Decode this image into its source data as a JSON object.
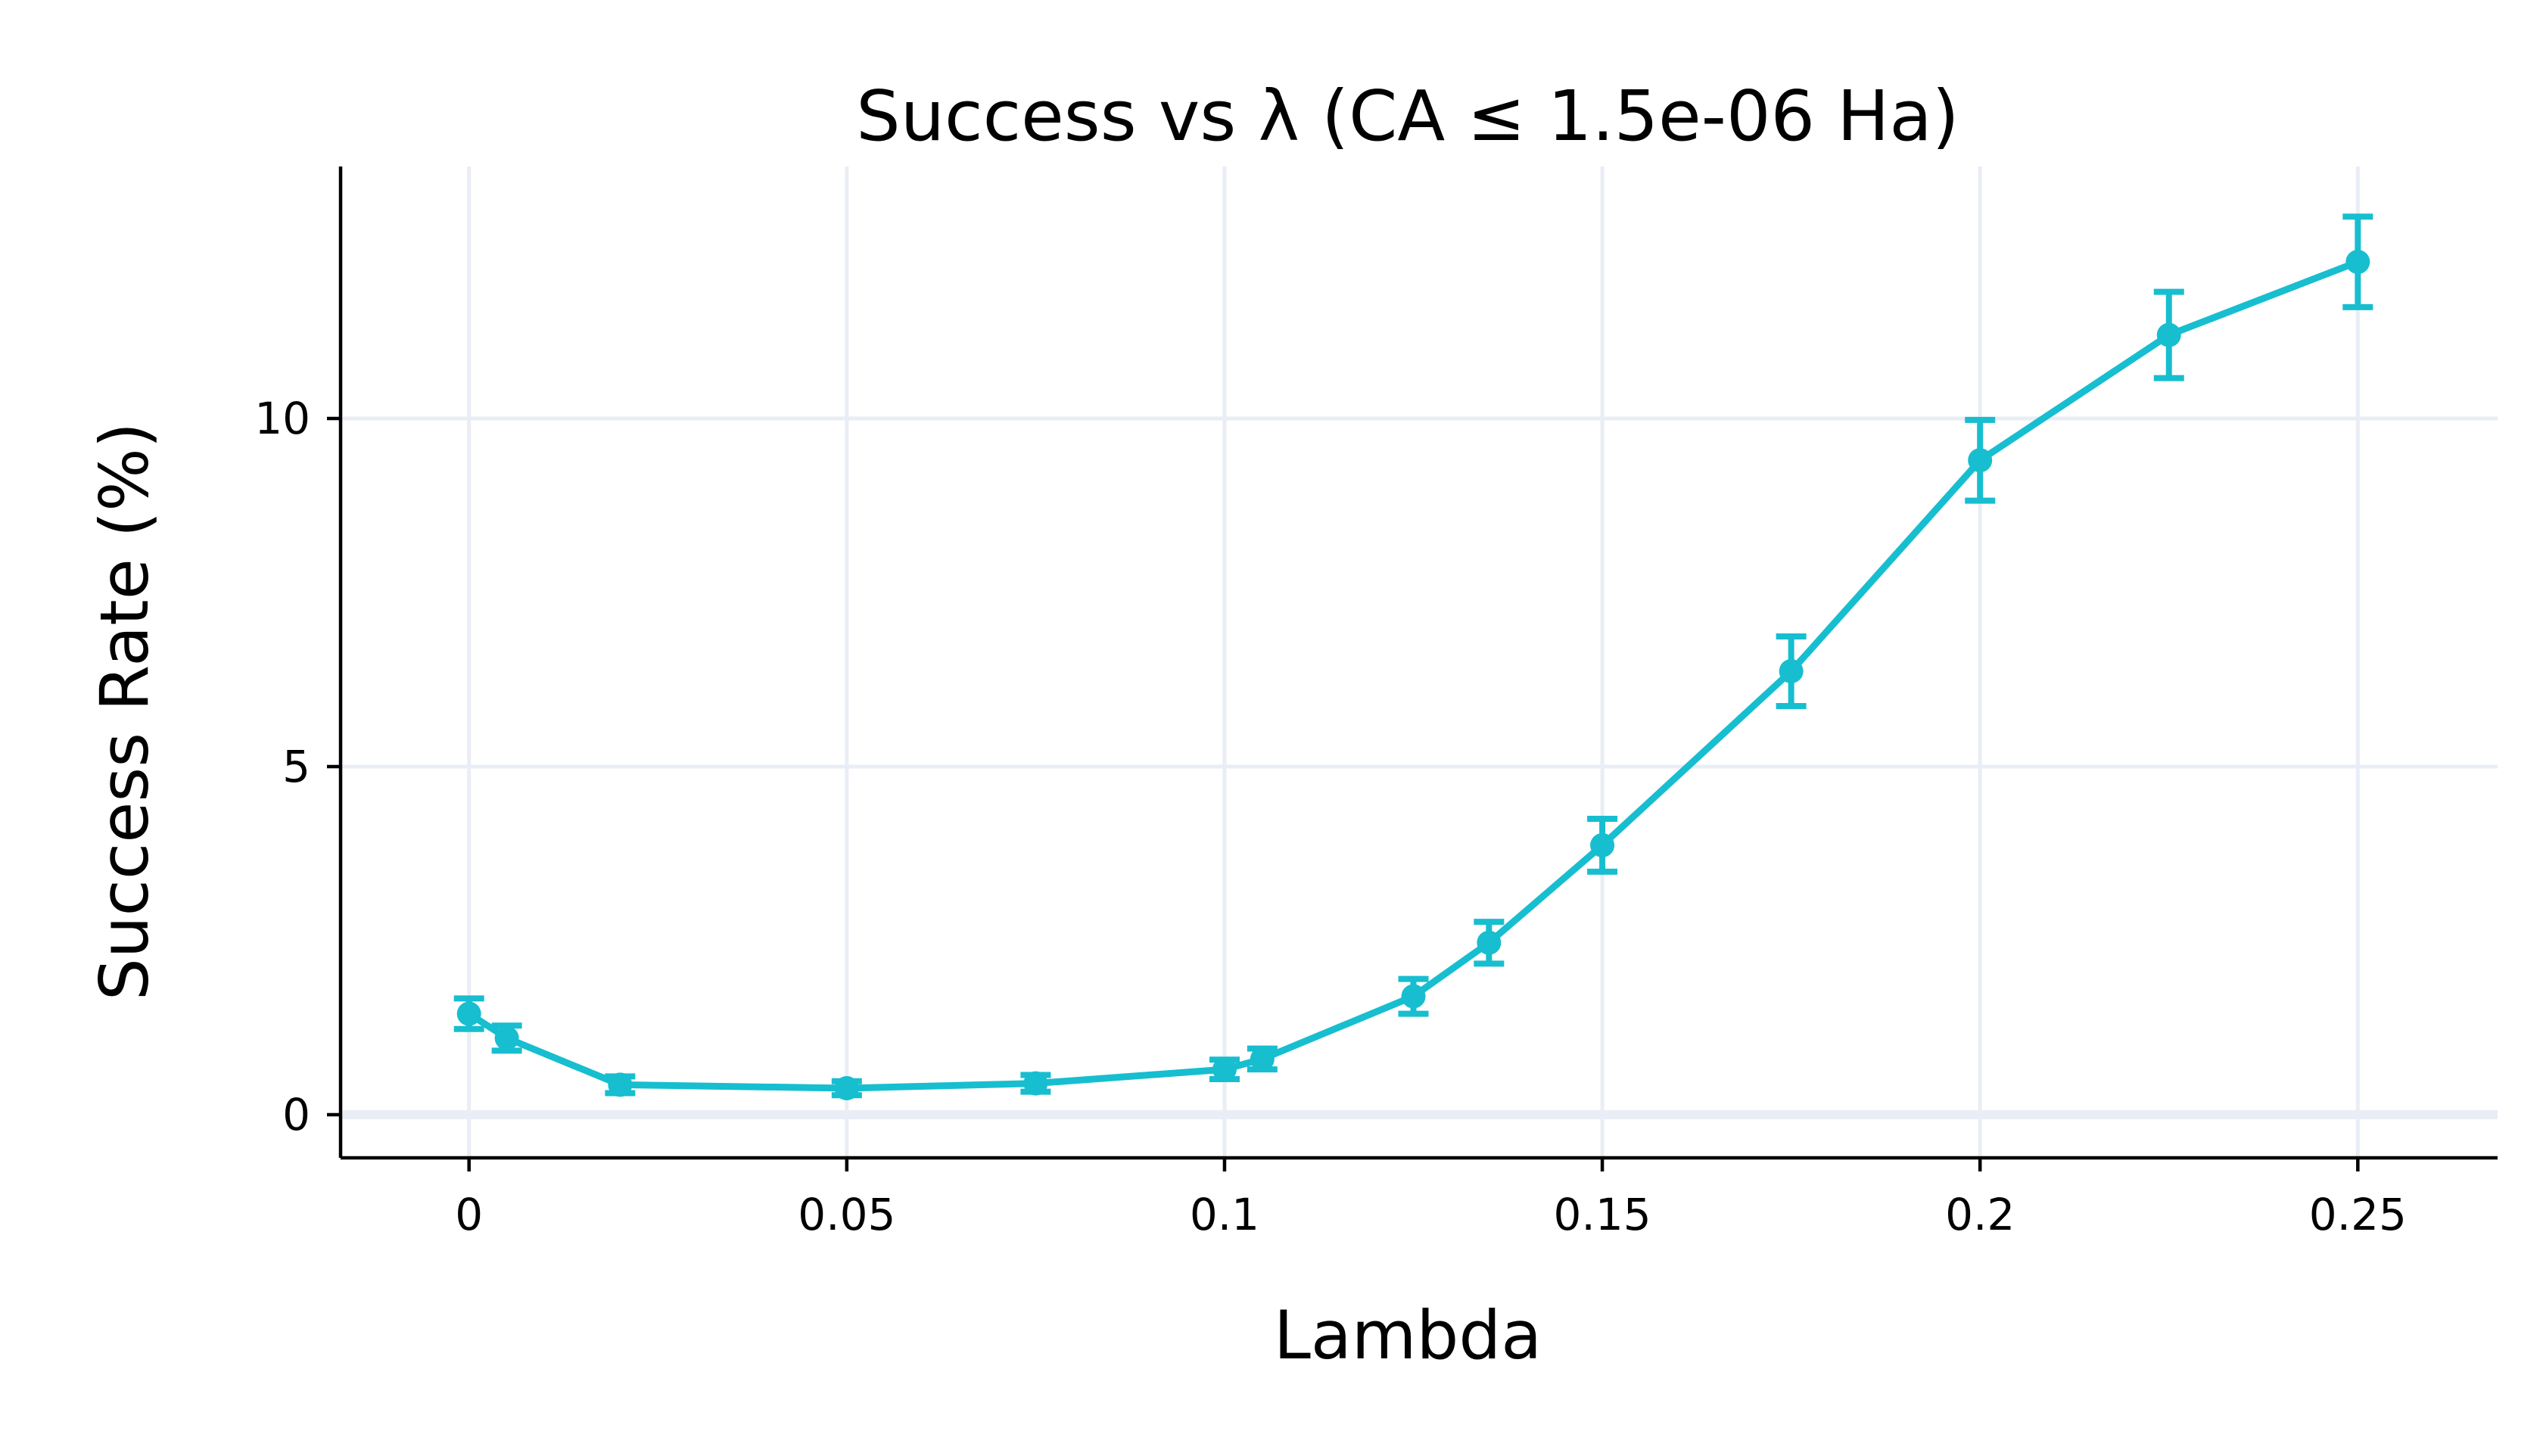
{
  "chart_data": {
    "type": "line",
    "title": "Success vs λ (CA ≤ 1.5e-06 Ha)",
    "xlabel": "Lambda",
    "ylabel": "Success Rate (%)",
    "xlim": [
      -0.017,
      0.2685
    ],
    "ylim": [
      -0.62,
      13.62
    ],
    "xticks": [
      0,
      0.05,
      0.1,
      0.15,
      0.2,
      0.25
    ],
    "xtick_labels": [
      "0",
      "0.05",
      "0.1",
      "0.15",
      "0.2",
      "0.25"
    ],
    "yticks": [
      0,
      5,
      10
    ],
    "ytick_labels": [
      "0",
      "5",
      "10"
    ],
    "grid": true,
    "legend": "none",
    "series": [
      {
        "name": "Success Rate",
        "color": "#17becf",
        "x": [
          0,
          0.005,
          0.02,
          0.05,
          0.075,
          0.1,
          0.105,
          0.125,
          0.135,
          0.15,
          0.175,
          0.2,
          0.225,
          0.25
        ],
        "y": [
          1.45,
          1.1,
          0.43,
          0.38,
          0.45,
          0.65,
          0.8,
          1.7,
          2.47,
          3.87,
          6.37,
          9.4,
          11.2,
          12.25
        ],
        "error_minus": [
          0.22,
          0.18,
          0.12,
          0.1,
          0.12,
          0.14,
          0.15,
          0.25,
          0.3,
          0.38,
          0.5,
          0.58,
          0.62,
          0.65
        ],
        "error_plus": [
          0.22,
          0.18,
          0.12,
          0.1,
          0.12,
          0.14,
          0.15,
          0.25,
          0.3,
          0.38,
          0.5,
          0.58,
          0.62,
          0.65
        ]
      }
    ]
  }
}
